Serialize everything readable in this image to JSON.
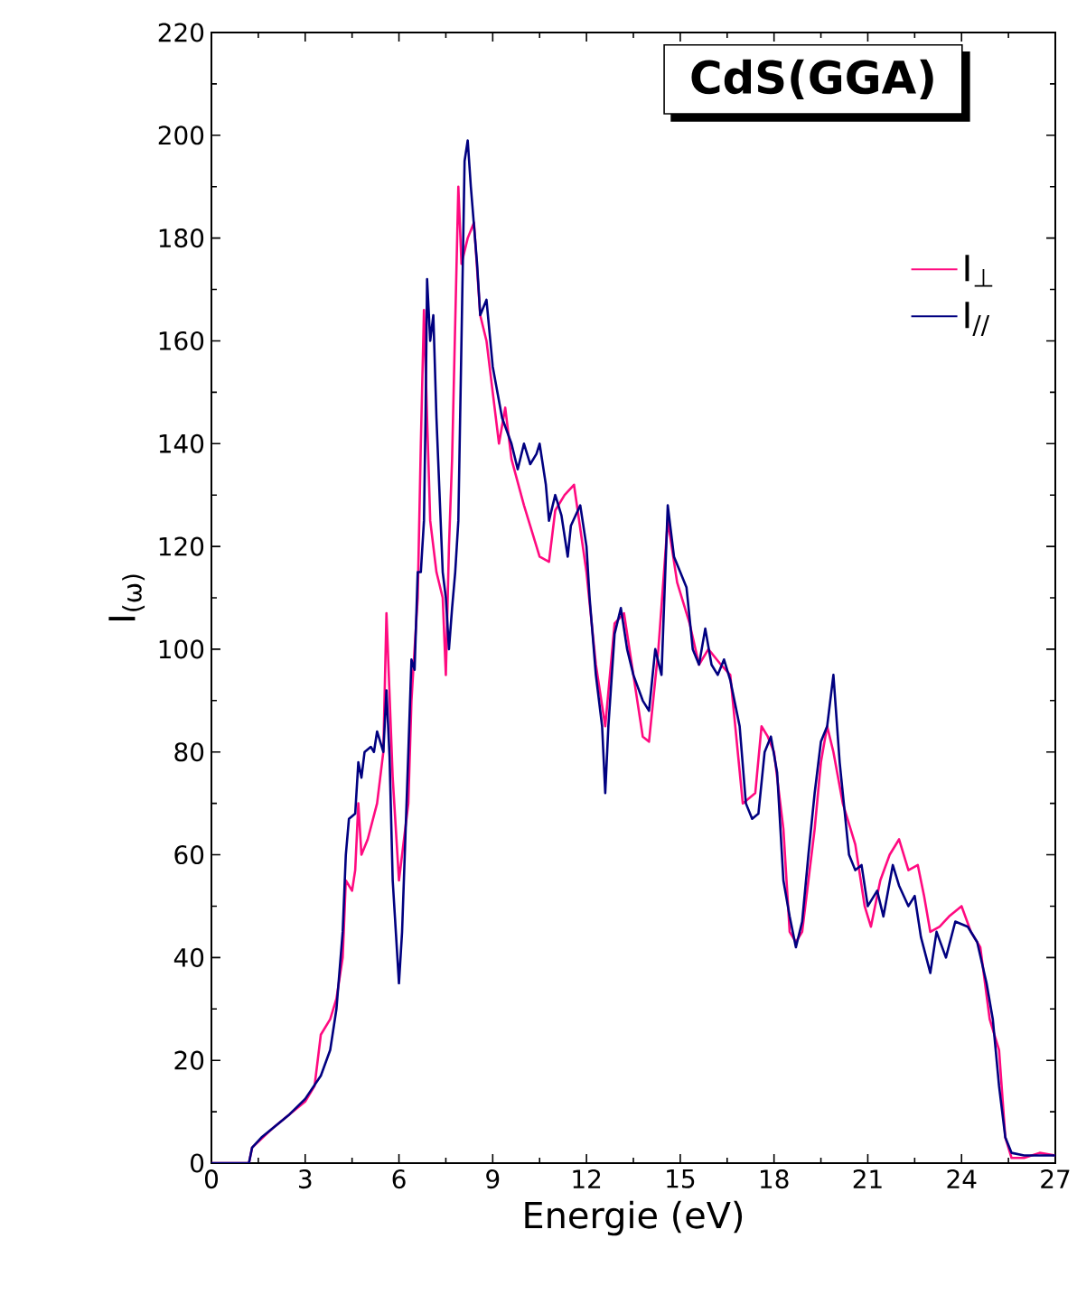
{
  "chart_data": {
    "type": "line",
    "title": "CdS(GGA)",
    "xlabel": "Energie (eV)",
    "ylabel": "I$_{(ω)}$",
    "xlim": [
      0,
      27
    ],
    "xticks": [
      0,
      3,
      6,
      9,
      12,
      15,
      18,
      21,
      24,
      27
    ],
    "ylim": [
      0,
      220
    ],
    "yticks": [
      0,
      20,
      40,
      60,
      80,
      100,
      120,
      140,
      160,
      180,
      200,
      220
    ],
    "grid": false,
    "legend": "top right",
    "marker": "none",
    "line_style": "solid",
    "series": [
      {
        "name": "I$_{⊥}$",
        "color": "#ff0a80",
        "x": [
          0,
          1.2,
          1.3,
          2,
          3,
          3.3,
          3.5,
          3.8,
          4.0,
          4.2,
          4.3,
          4.5,
          4.6,
          4.7,
          4.8,
          5.0,
          5.3,
          5.5,
          5.6,
          5.8,
          6.0,
          6.1,
          6.3,
          6.4,
          6.6,
          6.7,
          6.8,
          6.9,
          7.0,
          7.2,
          7.4,
          7.5,
          7.6,
          7.7,
          7.9,
          8.0,
          8.2,
          8.4,
          8.6,
          8.8,
          9.0,
          9.2,
          9.4,
          9.6,
          10,
          10.5,
          10.8,
          11.0,
          11.3,
          11.6,
          12,
          12.3,
          12.6,
          12.9,
          13.2,
          13.5,
          13.8,
          14.0,
          14.3,
          14.6,
          14.9,
          15.3,
          15.6,
          15.9,
          16.3,
          16.6,
          17.0,
          17.4,
          17.6,
          17.8,
          18.0,
          18.3,
          18.5,
          18.7,
          18.9,
          19.1,
          19.3,
          19.5,
          19.7,
          19.9,
          20.2,
          20.6,
          20.9,
          21.1,
          21.4,
          21.7,
          22.0,
          22.3,
          22.6,
          22.8,
          23.0,
          23.3,
          23.6,
          24.0,
          24.3,
          24.6,
          24.9,
          25.2,
          25.4,
          25.6,
          26.0,
          26.5,
          27
        ],
        "values": [
          0,
          0,
          3,
          7,
          12,
          15,
          25,
          28,
          32,
          40,
          55,
          53,
          57,
          70,
          60,
          63,
          70,
          80,
          107,
          75,
          55,
          60,
          70,
          90,
          110,
          140,
          166,
          145,
          125,
          115,
          110,
          95,
          120,
          137,
          190,
          175,
          180,
          183,
          165,
          160,
          150,
          140,
          147,
          137,
          128,
          118,
          117,
          127,
          130,
          132,
          115,
          97,
          85,
          105,
          107,
          95,
          83,
          82,
          100,
          125,
          113,
          105,
          97,
          100,
          97,
          95,
          70,
          72,
          85,
          83,
          80,
          65,
          45,
          43,
          45,
          55,
          65,
          78,
          85,
          80,
          70,
          62,
          50,
          46,
          55,
          60,
          63,
          57,
          58,
          52,
          45,
          46,
          48,
          50,
          45,
          42,
          28,
          22,
          5,
          1,
          1,
          2,
          1.5
        ]
      },
      {
        "name": "I$_{//}$",
        "color": "#000080",
        "x": [
          0,
          1.2,
          1.3,
          1.6,
          2,
          2.5,
          3,
          3.5,
          3.8,
          4.0,
          4.2,
          4.3,
          4.4,
          4.6,
          4.7,
          4.8,
          4.9,
          5.1,
          5.2,
          5.3,
          5.5,
          5.6,
          5.7,
          5.8,
          5.9,
          6.0,
          6.1,
          6.3,
          6.4,
          6.5,
          6.6,
          6.7,
          6.8,
          6.85,
          6.9,
          7.0,
          7.1,
          7.2,
          7.4,
          7.5,
          7.6,
          7.7,
          7.8,
          7.9,
          8.0,
          8.1,
          8.2,
          8.3,
          8.5,
          8.6,
          8.8,
          9.0,
          9.3,
          9.6,
          9.8,
          10.0,
          10.2,
          10.4,
          10.5,
          10.7,
          10.8,
          11.0,
          11.2,
          11.4,
          11.5,
          11.8,
          12.0,
          12.1,
          12.3,
          12.5,
          12.6,
          12.7,
          12.9,
          13.1,
          13.3,
          13.5,
          13.8,
          14.0,
          14.2,
          14.4,
          14.6,
          14.8,
          15.0,
          15.2,
          15.4,
          15.6,
          15.8,
          16.0,
          16.2,
          16.4,
          16.6,
          16.9,
          17.1,
          17.3,
          17.5,
          17.7,
          17.9,
          18.1,
          18.3,
          18.5,
          18.7,
          18.9,
          19.1,
          19.3,
          19.5,
          19.7,
          19.9,
          20.1,
          20.4,
          20.6,
          20.8,
          21.0,
          21.3,
          21.5,
          21.8,
          22.0,
          22.3,
          22.5,
          22.7,
          23.0,
          23.2,
          23.5,
          23.8,
          24.2,
          24.5,
          24.8,
          25.0,
          25.2,
          25.4,
          25.6,
          26,
          26.5,
          27
        ],
        "values": [
          0,
          0,
          3,
          5,
          7,
          9.5,
          12.5,
          17,
          22,
          30,
          45,
          60,
          67,
          68,
          78,
          75,
          80,
          81,
          80,
          84,
          80,
          92,
          79,
          55,
          45,
          35,
          45,
          80,
          98,
          96,
          115,
          115,
          125,
          145,
          172,
          160,
          165,
          145,
          115,
          110,
          100,
          108,
          115,
          125,
          160,
          195,
          199,
          190,
          175,
          165,
          168,
          155,
          145,
          140,
          135,
          140,
          136,
          138,
          140,
          132,
          125,
          130,
          126,
          118,
          124,
          128,
          120,
          110,
          95,
          85,
          72,
          85,
          103,
          108,
          100,
          95,
          90,
          88,
          100,
          95,
          128,
          118,
          115,
          112,
          100,
          97,
          104,
          97,
          95,
          98,
          94,
          85,
          70,
          67,
          68,
          80,
          83,
          76,
          55,
          48,
          42,
          47,
          60,
          72,
          82,
          85,
          95,
          78,
          60,
          57,
          58,
          50,
          53,
          48,
          58,
          54,
          50,
          52,
          44,
          37,
          45,
          40,
          47,
          46,
          43,
          35,
          28,
          15,
          5,
          2,
          1.5,
          1.5,
          1.5
        ]
      }
    ]
  }
}
